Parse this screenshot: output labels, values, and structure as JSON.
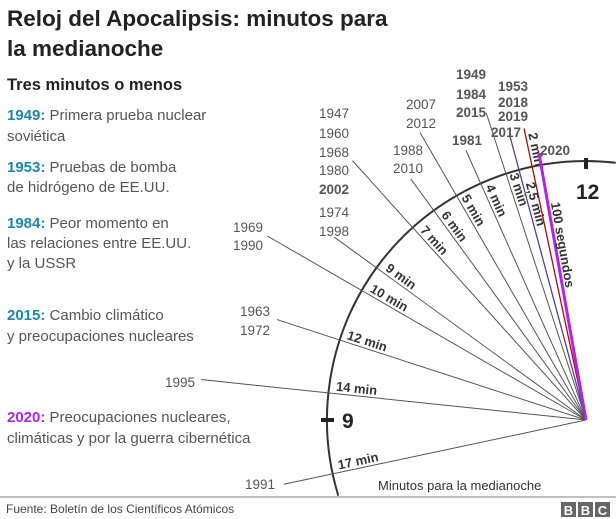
{
  "header": {
    "title_line1": "Reloj del Apocalipsis: minutos para",
    "title_line2": "la medianoche",
    "subtitle": "Tres minutos o menos"
  },
  "events": [
    {
      "year": "1949:",
      "lines": [
        "Primera prueba nuclear",
        "soviética"
      ],
      "color": "#1e87a8"
    },
    {
      "year": "1953:",
      "lines": [
        "Pruebas de bomba",
        "de hidrógeno de EE.UU."
      ],
      "color": "#1e87a8"
    },
    {
      "year": "1984:",
      "lines": [
        "Peor momento en",
        "las relaciones entre EE.UU.",
        "y la USSR"
      ],
      "color": "#1e87a8"
    },
    {
      "year": "2015:",
      "lines": [
        "Cambio climático",
        "y preocupaciones nucleares"
      ],
      "color": "#1e87a8"
    },
    {
      "year": "2020:",
      "lines": [
        "Preocupaciones nucleares,",
        "climáticas y por la guerra cibernética"
      ],
      "color": "#b024e6"
    }
  ],
  "clock": {
    "hour_12": "12",
    "hour_9": "9",
    "axis_note": "Minutos para la medianoche",
    "marks": [
      {
        "minutes": 17,
        "label": "17 min",
        "color": "#333333",
        "years": [
          {
            "year": "1991"
          }
        ]
      },
      {
        "minutes": 14,
        "label": "14 min",
        "color": "#333333",
        "years": [
          {
            "year": "1995"
          }
        ]
      },
      {
        "minutes": 12,
        "label": "12 min",
        "color": "#333333",
        "years": [
          {
            "year": "1963"
          },
          {
            "year": "1972"
          }
        ]
      },
      {
        "minutes": 10,
        "label": "10 min",
        "color": "#333333",
        "years": [
          {
            "year": "1969"
          },
          {
            "year": "1990"
          }
        ]
      },
      {
        "minutes": 9,
        "label": "9 min",
        "color": "#333333",
        "years": [
          {
            "year": "1974"
          },
          {
            "year": "1998"
          }
        ]
      },
      {
        "minutes": 7,
        "label": "7 min",
        "color": "#333333",
        "years": [
          {
            "year": "1947"
          },
          {
            "year": "1960"
          },
          {
            "year": "1968"
          },
          {
            "year": "1980"
          },
          {
            "year": "2002",
            "highlight": "#1e87a8"
          }
        ]
      },
      {
        "minutes": 6,
        "label": "6 min",
        "color": "#333333",
        "years": [
          {
            "year": "1988"
          },
          {
            "year": "2010"
          }
        ]
      },
      {
        "minutes": 5,
        "label": "5 min",
        "color": "#333333",
        "years": [
          {
            "year": "2007"
          },
          {
            "year": "2012"
          }
        ]
      },
      {
        "minutes": 4,
        "label": "4 min",
        "color": "#333333",
        "years": [
          {
            "year": "1981",
            "highlight": "#13807c"
          }
        ]
      },
      {
        "minutes": 3,
        "label": "3 min",
        "color": "#333333",
        "years": [
          {
            "year": "1949",
            "highlight": "#1e87a8"
          },
          {
            "year": "1984",
            "highlight": "#1e87a8"
          },
          {
            "year": "2015",
            "highlight": "#1e87a8"
          }
        ]
      },
      {
        "minutes": 2.5,
        "label": "2,5 min",
        "color": "#5b3d8f",
        "years": [
          {
            "year": "2017",
            "highlight": "#5b3d8f"
          }
        ]
      },
      {
        "minutes": 2,
        "label": "2 min",
        "color": "#a30f0f",
        "years": [
          {
            "year": "1953",
            "highlight": "#1e87a8"
          },
          {
            "year": "2018",
            "highlight": "#a30f0f"
          },
          {
            "year": "2019",
            "highlight": "#a30f0f"
          }
        ]
      },
      {
        "minutes": 1.667,
        "label": "100 segundos",
        "color": "#b024e6",
        "years": [
          {
            "year": "2020",
            "highlight": "#b024e6"
          }
        ]
      }
    ]
  },
  "footer": {
    "source": "Fuente: Boletín de los Científicos Atómicos",
    "logo": [
      "B",
      "B",
      "C"
    ]
  }
}
